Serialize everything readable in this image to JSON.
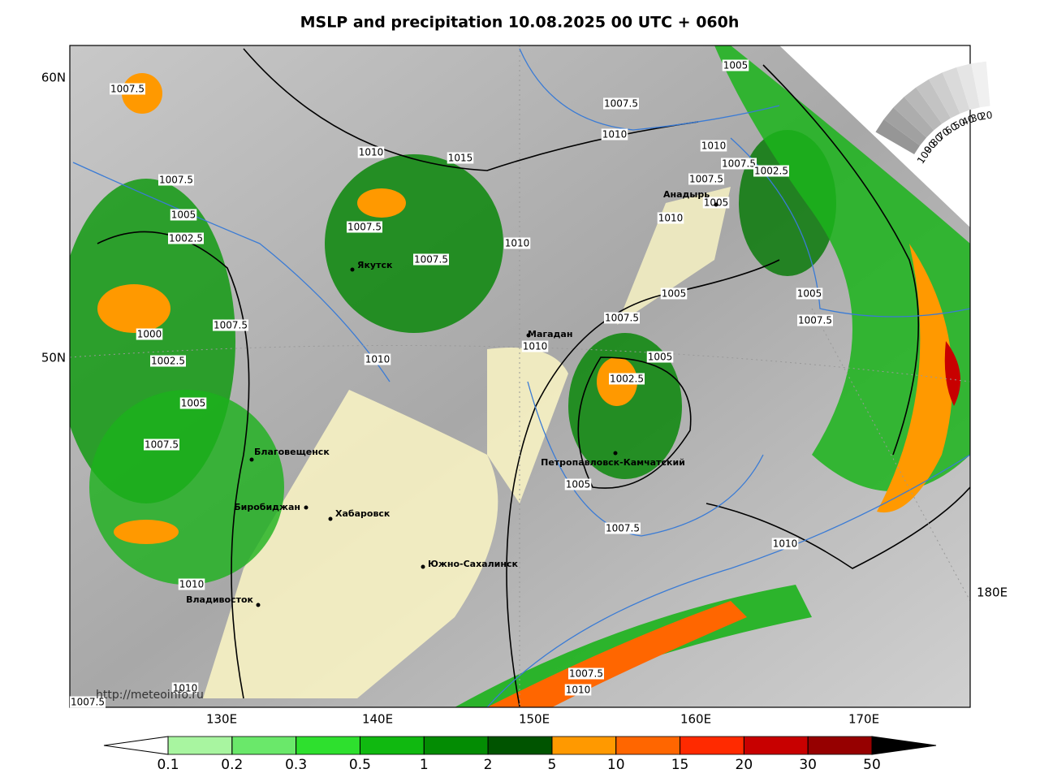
{
  "title": "MSLP and precipitation 10.08.2025 00 UTC + 060h",
  "map": {
    "lat_labels": [
      "60N",
      "50N"
    ],
    "lon_labels": [
      "130E",
      "140E",
      "150E",
      "160E",
      "170E",
      "180E"
    ],
    "cities": [
      "Якутск",
      "Магадан",
      "Анадырь",
      "Петропавловск-Камчатский",
      "Благовещенск",
      "Биробиджан",
      "Хабаровск",
      "Южно-Сахалинск",
      "Владивосток"
    ],
    "isobar_labels": [
      "1007.5",
      "1005",
      "1007.5",
      "1010",
      "1010",
      "1010",
      "1015",
      "1007.5",
      "1007.5",
      "1007.5",
      "1002.5",
      "1005",
      "1010",
      "1007.5",
      "1005",
      "1002.5",
      "1010",
      "1007.5",
      "1005",
      "1005",
      "1007.5",
      "1007.5",
      "1007.5",
      "1000",
      "1010",
      "1010",
      "1005",
      "1002.5",
      "1002.5",
      "1005",
      "1007.5",
      "1005",
      "1007.5",
      "1010",
      "1010",
      "1007.5",
      "1010",
      "1010",
      "1007.5"
    ],
    "credit": "http://meteoinfo.ru"
  },
  "cloud_scale": [
    100,
    90,
    80,
    70,
    60,
    50,
    40,
    30,
    20
  ],
  "colorbar": {
    "levels": [
      0.1,
      0.2,
      0.3,
      0.5,
      1,
      2,
      5,
      10,
      15,
      20,
      30,
      50
    ],
    "colors": [
      "#a8f5a0",
      "#6ae86a",
      "#2ee02e",
      "#10b910",
      "#038c03",
      "#005400",
      "#ff9900",
      "#ff6600",
      "#ff2a00",
      "#c80000",
      "#960000"
    ]
  }
}
